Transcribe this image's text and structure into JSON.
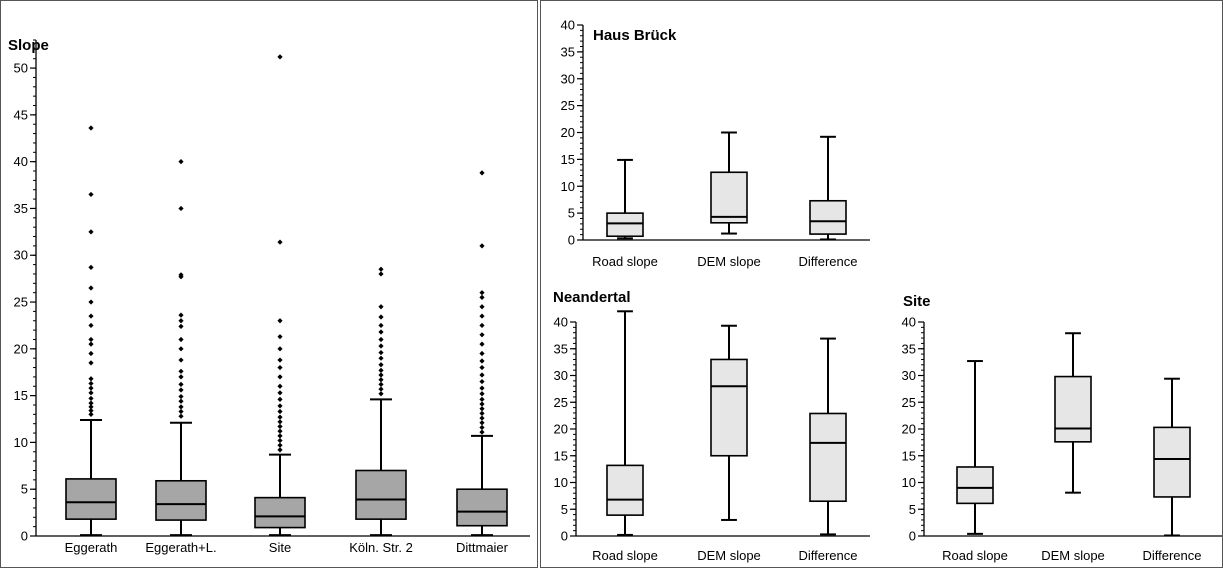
{
  "chart_data": [
    {
      "type": "box",
      "title": "Slope",
      "ylim": [
        0,
        53
      ],
      "yticks": [
        0,
        5,
        10,
        15,
        20,
        25,
        30,
        35,
        40,
        45,
        50
      ],
      "box_fill": "#a6a6a6",
      "boxes": [
        {
          "label": "Eggerath",
          "min": 0.1,
          "q1": 1.8,
          "median": 3.6,
          "q3": 6.1,
          "max": 12.4,
          "outliers": [
            13,
            13.4,
            13.8,
            14.2,
            14.7,
            15.3,
            15.8,
            16.3,
            16.8,
            18.5,
            19.5,
            20.5,
            21,
            22.5,
            23.5,
            25,
            26.5,
            28.7,
            32.5,
            36.5,
            43.6
          ]
        },
        {
          "label": "Eggerath+L.",
          "min": 0.1,
          "q1": 1.7,
          "median": 3.4,
          "q3": 5.9,
          "max": 12.1,
          "outliers": [
            12.8,
            13.3,
            13.8,
            14.4,
            14.9,
            15.6,
            16.2,
            17,
            17.6,
            18.8,
            20,
            21,
            22.4,
            23,
            23.6,
            27.7,
            27.9,
            35,
            40
          ]
        },
        {
          "label": "Site",
          "min": 0.1,
          "q1": 0.9,
          "median": 2.1,
          "q3": 4.1,
          "max": 8.7,
          "outliers": [
            9.2,
            9.7,
            10.2,
            10.7,
            11.2,
            11.7,
            12.2,
            12.7,
            13.3,
            13.9,
            14.6,
            15.3,
            16,
            17,
            18,
            18.8,
            20,
            21.3,
            23,
            31.4,
            51.2
          ]
        },
        {
          "label": "Köln. Str. 2",
          "min": 0.1,
          "q1": 1.8,
          "median": 3.9,
          "q3": 7.0,
          "max": 14.6,
          "outliers": [
            15.2,
            15.7,
            16.2,
            16.7,
            17.2,
            17.7,
            18.3,
            19,
            19.6,
            20.3,
            21,
            21.8,
            22.5,
            23.4,
            24.5,
            28,
            28.5
          ]
        },
        {
          "label": "Dittmaier",
          "min": 0.1,
          "q1": 1.1,
          "median": 2.6,
          "q3": 5.0,
          "max": 10.7,
          "outliers": [
            11.1,
            11.6,
            12.1,
            12.6,
            13.1,
            13.6,
            14.1,
            14.6,
            15.2,
            15.8,
            16.5,
            17.2,
            18,
            18.7,
            19.5,
            20.5,
            21.5,
            22.5,
            23.5,
            24.5,
            25.5,
            26,
            31,
            38.8
          ]
        }
      ]
    },
    {
      "type": "box",
      "title": "Haus Brück",
      "ylim": [
        0,
        40
      ],
      "yticks": [
        0,
        5,
        10,
        15,
        20,
        25,
        30,
        35,
        40
      ],
      "box_fill": "#e6e6e6",
      "boxes": [
        {
          "label": "Road slope",
          "min": 0.3,
          "q1": 0.7,
          "median": 3.1,
          "q3": 5.0,
          "max": 14.9
        },
        {
          "label": "DEM slope",
          "min": 1.2,
          "q1": 3.2,
          "median": 4.3,
          "q3": 12.6,
          "max": 20.0
        },
        {
          "label": "Difference",
          "min": 0.1,
          "q1": 1.1,
          "median": 3.5,
          "q3": 7.3,
          "max": 19.2
        }
      ]
    },
    {
      "type": "box",
      "title": "Neandertal",
      "ylim": [
        0,
        40
      ],
      "yticks": [
        0,
        5,
        10,
        15,
        20,
        25,
        30,
        35,
        40
      ],
      "box_fill": "#e6e6e6",
      "boxes": [
        {
          "label": "Road slope",
          "min": 0.2,
          "q1": 3.9,
          "median": 6.8,
          "q3": 13.2,
          "max": 42.0
        },
        {
          "label": "DEM slope",
          "min": 3.0,
          "q1": 15.0,
          "median": 28.0,
          "q3": 33.0,
          "max": 39.3
        },
        {
          "label": "Difference",
          "min": 0.3,
          "q1": 6.5,
          "median": 17.4,
          "q3": 22.9,
          "max": 36.9
        }
      ]
    },
    {
      "type": "box",
      "title": "Site",
      "ylim": [
        0,
        40
      ],
      "yticks": [
        0,
        5,
        10,
        15,
        20,
        25,
        30,
        35,
        40
      ],
      "box_fill": "#e6e6e6",
      "boxes": [
        {
          "label": "Road slope",
          "min": 0.4,
          "q1": 6.1,
          "median": 9.0,
          "q3": 12.9,
          "max": 32.7
        },
        {
          "label": "DEM slope",
          "min": 8.1,
          "q1": 17.6,
          "median": 20.1,
          "q3": 29.8,
          "max": 37.9
        },
        {
          "label": "Difference",
          "min": 0.1,
          "q1": 7.3,
          "median": 14.4,
          "q3": 20.3,
          "max": 29.4
        }
      ]
    }
  ]
}
